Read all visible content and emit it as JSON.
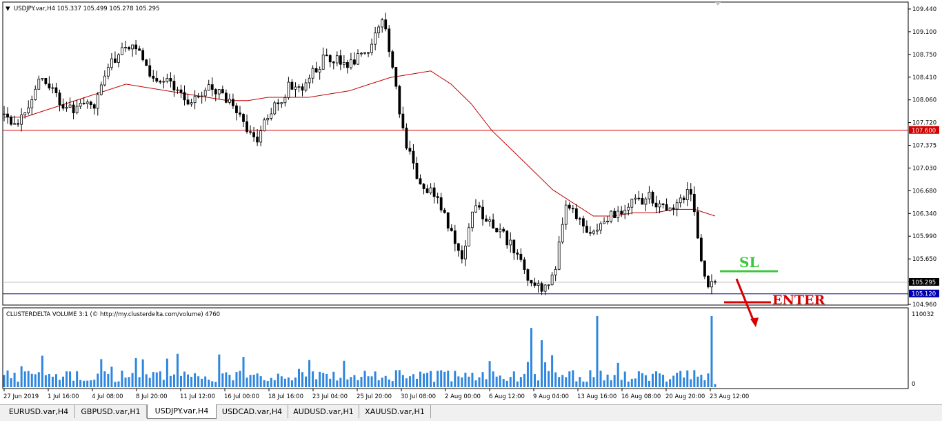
{
  "main_chart": {
    "header": "USDJPY.var,H4  105.337 105.499 105.278 105.295",
    "price_ticks": [
      "109.440",
      "109.100",
      "108.750",
      "108.410",
      "108.060",
      "107.720",
      "107.375",
      "107.030",
      "106.680",
      "106.340",
      "105.990",
      "105.650",
      "105.295",
      "104.960"
    ],
    "price_min": 104.96,
    "price_max": 109.44,
    "hlines": [
      {
        "price": 107.6,
        "label": "107.600",
        "color": "#d40000",
        "label_bg": "#d40000",
        "label_color": "#ffffff"
      },
      {
        "price": 105.295,
        "label": "105.295",
        "color": "#c0c0c0",
        "label_bg": "#000000",
        "label_color": "#ffffff"
      },
      {
        "price": 105.12,
        "label": "105.120",
        "color": "#000080",
        "label_bg": "#0000b0",
        "label_color": "#ffffff"
      }
    ],
    "annotations": {
      "sl_text": "SL",
      "enter_text": "ENTER",
      "sl_color": "#3cc83c",
      "enter_color": "#d80000"
    }
  },
  "volume_indicator": {
    "header": "CLUSTERDELTA VOLUME 3:1 (© http://my.clusterdelta.com/volume) 4760",
    "ticks": [
      "110032",
      "0"
    ],
    "vmax": 110032,
    "bar_color": "#2e86de",
    "bars_sample_note": ""
  },
  "time_axis": [
    "27 Jun 2019",
    "1 Jul 16:00",
    "4 Jul 08:00",
    "8 Jul 20:00",
    "11 Jul 12:00",
    "16 Jul 00:00",
    "18 Jul 16:00",
    "23 Jul 04:00",
    "25 Jul 20:00",
    "30 Jul 08:00",
    "2 Aug 00:00",
    "6 Aug 12:00",
    "9 Aug 04:00",
    "13 Aug 16:00",
    "16 Aug 08:00",
    "20 Aug 20:00",
    "23 Aug 12:00"
  ],
  "chart_data": {
    "type": "candlestick",
    "title": "USDJPY.var,H4",
    "ylim": [
      104.96,
      109.44
    ],
    "close_path": [
      107.8,
      107.7,
      107.95,
      108.4,
      108.3,
      108.0,
      107.9,
      107.95,
      108.0,
      108.6,
      108.75,
      108.9,
      108.8,
      108.35,
      108.4,
      108.2,
      108.05,
      108.1,
      108.3,
      108.1,
      108.0,
      107.7,
      107.4,
      107.85,
      108.05,
      108.3,
      108.25,
      108.5,
      108.7,
      108.65,
      108.55,
      108.7,
      108.9,
      109.3,
      108.4,
      107.4,
      106.9,
      106.7,
      106.5,
      106.0,
      105.7,
      106.4,
      106.3,
      106.1,
      105.9,
      105.6,
      105.3,
      105.2,
      105.4,
      106.5,
      106.3,
      106.0,
      106.1,
      106.3,
      106.4,
      106.5,
      106.6,
      106.5,
      106.4,
      106.6,
      106.7,
      105.3,
      105.295
    ],
    "ma_path": [
      107.8,
      107.8,
      107.9,
      108.0,
      108.1,
      108.2,
      108.3,
      108.25,
      108.2,
      108.15,
      108.1,
      108.05,
      108.05,
      108.1,
      108.1,
      108.1,
      108.15,
      108.2,
      108.3,
      108.4,
      108.45,
      108.5,
      108.3,
      108.0,
      107.6,
      107.3,
      107.0,
      106.7,
      106.5,
      106.3,
      106.3,
      106.35,
      106.35,
      106.4,
      106.4,
      106.3
    ],
    "legend": []
  },
  "tabs": [
    {
      "label": "EURUSD.var,H4",
      "active": false
    },
    {
      "label": "GBPUSD.var,H1",
      "active": false
    },
    {
      "label": "USDJPY.var,H4",
      "active": true
    },
    {
      "label": "USDCAD.var,H4",
      "active": false
    },
    {
      "label": "AUDUSD.var,H1",
      "active": false
    },
    {
      "label": "XAUUSD.var,H1",
      "active": false
    }
  ]
}
